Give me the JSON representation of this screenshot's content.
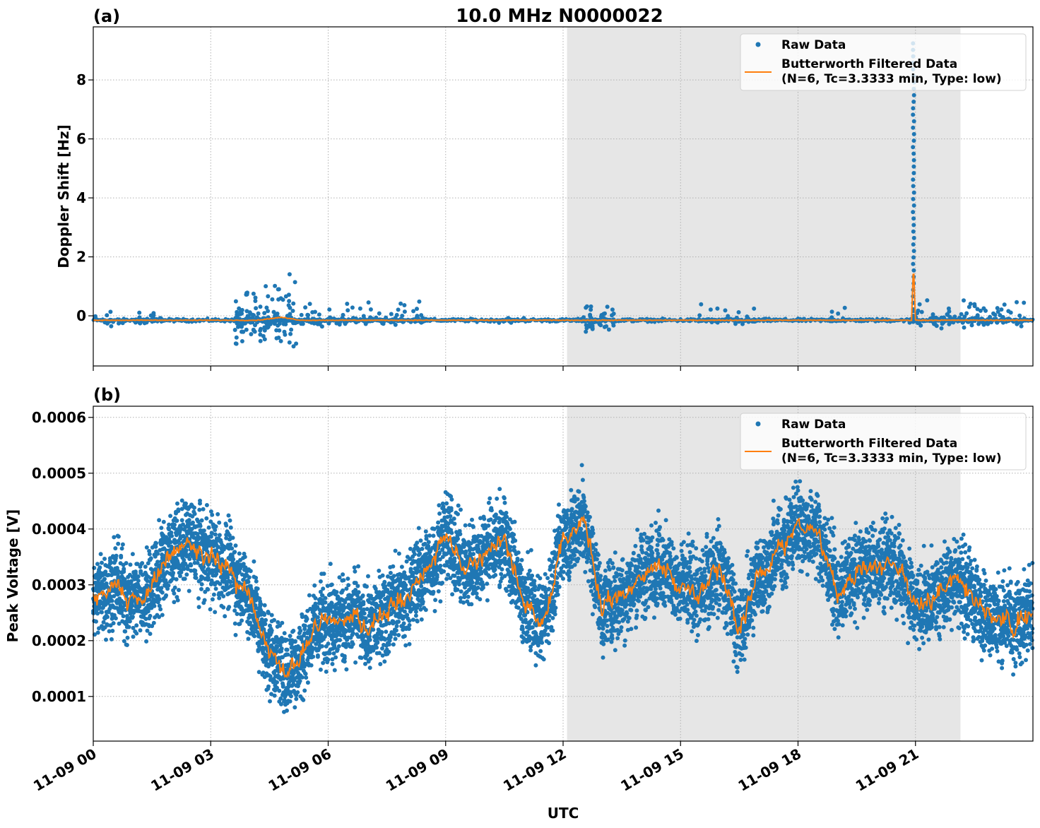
{
  "figure": {
    "title": "10.0 MHz N0000022",
    "xlabel": "UTC",
    "x_ticks": [
      "11-09 00",
      "11-09 03",
      "11-09 06",
      "11-09 09",
      "11-09 12",
      "11-09 15",
      "11-09 18",
      "11-09 21"
    ],
    "shaded_span_hours": [
      12.1,
      22.15
    ],
    "colors": {
      "raw": "#1f77b4",
      "filtered": "#ff7f0e",
      "shade": "#e6e6e6",
      "grid": "#b0b0b0"
    },
    "legend": {
      "raw_label": "Raw Data",
      "filtered_label_1": "Butterworth Filtered Data",
      "filtered_label_2": "(N=6, Tc=3.3333 min, Type: low)",
      "position": "upper right"
    }
  },
  "chart_data": [
    {
      "type": "scatter",
      "panel_label": "(a)",
      "ylabel": "Doppler Shift [Hz]",
      "y_ticks": [
        "0",
        "2",
        "4",
        "6",
        "8"
      ],
      "y_tick_values": [
        0,
        2,
        4,
        6,
        8
      ],
      "ylim": [
        -1.7,
        9.8
      ],
      "xlim_hours": [
        0,
        24
      ],
      "grid": true,
      "series": [
        {
          "name": "Raw Data",
          "style": "dots",
          "baseline": -0.15,
          "baseline_spread": 0.08,
          "bursts": [
            {
              "x": [
                0.0,
                1.8
              ],
              "y": [
                -0.4,
                0.35
              ],
              "n": 40
            },
            {
              "x": [
                3.6,
                5.2
              ],
              "y": [
                -1.15,
                1.7
              ],
              "n": 160
            },
            {
              "x": [
                5.2,
                8.5
              ],
              "y": [
                -0.4,
                0.55
              ],
              "n": 120
            },
            {
              "x": [
                9.5,
                11.0
              ],
              "y": [
                -0.3,
                0.15
              ],
              "n": 12
            },
            {
              "x": [
                12.5,
                13.3
              ],
              "y": [
                -0.8,
                0.6
              ],
              "n": 55
            },
            {
              "x": [
                15.4,
                17.0
              ],
              "y": [
                -0.3,
                0.55
              ],
              "n": 45
            },
            {
              "x": [
                18.8,
                19.2
              ],
              "y": [
                -0.3,
                0.4
              ],
              "n": 10
            },
            {
              "x": [
                20.8,
                23.8
              ],
              "y": [
                -0.45,
                0.6
              ],
              "n": 140
            }
          ],
          "spike": {
            "x": 20.95,
            "ymax": 9.25
          }
        },
        {
          "name": "Butterworth Filtered Data (N=6, Tc=3.3333 min, Type: low)",
          "style": "line",
          "x": [
            0,
            4.2,
            4.8,
            5.3,
            20.9,
            20.95,
            21.0,
            24
          ],
          "y": [
            -0.15,
            -0.15,
            -0.05,
            -0.15,
            -0.15,
            1.8,
            -0.15,
            -0.15
          ]
        }
      ]
    },
    {
      "type": "scatter",
      "panel_label": "(b)",
      "ylabel": "Peak Voltage [V]",
      "y_ticks": [
        "0.0001",
        "0.0002",
        "0.0003",
        "0.0004",
        "0.0005",
        "0.0006"
      ],
      "y_tick_values": [
        0.0001,
        0.0002,
        0.0003,
        0.0004,
        0.0005,
        0.0006
      ],
      "ylim": [
        2e-05,
        0.00062
      ],
      "xlim_hours": [
        0,
        24
      ],
      "grid": true,
      "series": [
        {
          "name": "Raw Data",
          "style": "dots",
          "spread": 0.00012
        },
        {
          "name": "Butterworth Filtered Data (N=6, Tc=3.3333 min, Type: low)",
          "style": "line",
          "x": [
            0,
            0.5,
            1.0,
            1.5,
            2.0,
            2.5,
            3.0,
            3.5,
            4.0,
            4.5,
            5.0,
            5.5,
            6.0,
            6.5,
            7.0,
            7.5,
            8.0,
            8.5,
            9.0,
            9.5,
            10.0,
            10.5,
            11.0,
            11.5,
            12.0,
            12.5,
            13.0,
            13.5,
            14.0,
            14.5,
            15.0,
            15.5,
            16.0,
            16.5,
            17.0,
            17.5,
            18.0,
            18.5,
            19.0,
            19.5,
            20.0,
            20.5,
            21.0,
            21.5,
            22.0,
            22.5,
            23.0,
            23.5,
            24.0
          ],
          "y": [
            0.00028,
            0.0003,
            0.00027,
            0.0003,
            0.00036,
            0.00038,
            0.00035,
            0.00033,
            0.00028,
            0.00018,
            0.00014,
            0.0002,
            0.00025,
            0.00024,
            0.00022,
            0.00026,
            0.00028,
            0.00033,
            0.00038,
            0.00033,
            0.00036,
            0.00039,
            0.00026,
            0.00024,
            0.00038,
            0.00042,
            0.00025,
            0.00028,
            0.00032,
            0.00034,
            0.0003,
            0.00028,
            0.00034,
            0.00022,
            0.00032,
            0.00036,
            0.00041,
            0.0004,
            0.00028,
            0.00032,
            0.00033,
            0.00034,
            0.00026,
            0.00028,
            0.00032,
            0.00027,
            0.00025,
            0.00022,
            0.00025
          ]
        }
      ]
    }
  ]
}
